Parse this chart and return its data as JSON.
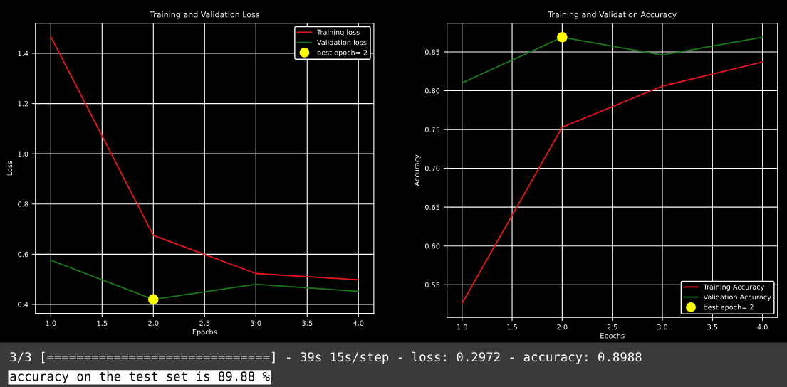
{
  "chart_data": [
    {
      "type": "line",
      "title": "Training and Validation Loss",
      "xlabel": "Epochs",
      "ylabel": "Loss",
      "x": [
        1.0,
        2.0,
        3.0,
        4.0
      ],
      "series": [
        {
          "name": "Training loss",
          "color": "#e8141e",
          "values": [
            1.467,
            0.675,
            0.523,
            0.498
          ]
        },
        {
          "name": "Validation loss",
          "color": "#1a7a1a",
          "values": [
            0.576,
            0.42,
            0.48,
            0.452
          ]
        },
        {
          "name": "best epoch= 2",
          "type": "scatter",
          "color": "#ffff00",
          "x": [
            2.0
          ],
          "values": [
            0.42
          ]
        }
      ],
      "xlim": [
        0.85,
        4.15
      ],
      "ylim": [
        0.364,
        1.52
      ],
      "xticks": [
        {
          "value": 1.0,
          "label": "1.0"
        },
        {
          "value": 1.5,
          "label": "1.5"
        },
        {
          "value": 2.0,
          "label": "2.0"
        },
        {
          "value": 2.5,
          "label": "2.5"
        },
        {
          "value": 3.0,
          "label": "3.0"
        },
        {
          "value": 3.5,
          "label": "3.5"
        },
        {
          "value": 4.0,
          "label": "4.0"
        }
      ],
      "yticks": [
        {
          "value": 0.4,
          "label": "0.4"
        },
        {
          "value": 0.6,
          "label": "0.6"
        },
        {
          "value": 0.8,
          "label": "0.8"
        },
        {
          "value": 1.0,
          "label": "1.0"
        },
        {
          "value": 1.2,
          "label": "1.2"
        },
        {
          "value": 1.4,
          "label": "1.4"
        }
      ],
      "grid": true,
      "legend": "top right",
      "annotations": [
        "3/3 [==============================] - 39s 15s/step - loss: 0.2972 - accuracy: 0.8988",
        "accuracy on the test set is 89.88 %"
      ]
    },
    {
      "type": "line",
      "title": "Training and Validation Accuracy",
      "xlabel": "Epochs",
      "ylabel": "Accuracy",
      "x": [
        1.0,
        2.0,
        3.0,
        4.0
      ],
      "series": [
        {
          "name": "Training Accuracy",
          "color": "#e8141e",
          "values": [
            0.526,
            0.753,
            0.806,
            0.837
          ]
        },
        {
          "name": "Validation Accuracy",
          "color": "#1a7a1a",
          "values": [
            0.81,
            0.869,
            0.846,
            0.869
          ]
        },
        {
          "name": "best epoch= 2",
          "type": "scatter",
          "color": "#ffff00",
          "x": [
            2.0
          ],
          "values": [
            0.869
          ]
        }
      ],
      "xlim": [
        0.85,
        4.15
      ],
      "ylim": [
        0.508,
        0.887
      ],
      "xticks": [
        {
          "value": 1.0,
          "label": "1.0"
        },
        {
          "value": 1.5,
          "label": "1.5"
        },
        {
          "value": 2.0,
          "label": "2.0"
        },
        {
          "value": 2.5,
          "label": "2.5"
        },
        {
          "value": 3.0,
          "label": "3.0"
        },
        {
          "value": 3.5,
          "label": "3.5"
        },
        {
          "value": 4.0,
          "label": "4.0"
        }
      ],
      "yticks": [
        {
          "value": 0.55,
          "label": "0.55"
        },
        {
          "value": 0.6,
          "label": "0.60"
        },
        {
          "value": 0.65,
          "label": "0.65"
        },
        {
          "value": 0.7,
          "label": "0.70"
        },
        {
          "value": 0.75,
          "label": "0.75"
        },
        {
          "value": 0.8,
          "label": "0.80"
        },
        {
          "value": 0.85,
          "label": "0.85"
        }
      ],
      "grid": true,
      "legend": "bottom right"
    }
  ]
}
